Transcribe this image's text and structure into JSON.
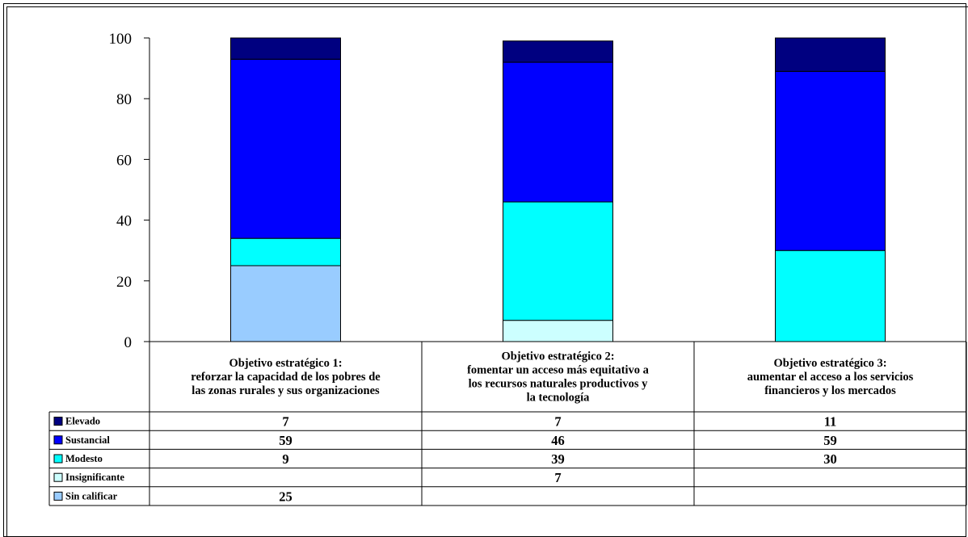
{
  "chart_data": {
    "type": "bar",
    "stacked": true,
    "ylim": [
      0,
      100
    ],
    "yticks": [
      0,
      20,
      40,
      60,
      80,
      100
    ],
    "grid": false,
    "legend_placement": "data table rows below chart",
    "categories": [
      [
        "Objetivo estratégico 1:",
        "reforzar la capacidad de los pobres de",
        "las zonas rurales y sus organizaciones"
      ],
      [
        "Objetivo estratégico 2:",
        "fomentar un acceso más equitativo a",
        "los recursos naturales productivos y",
        "la tecnología"
      ],
      [
        "Objetivo estratégico 3:",
        "aumentar el acceso a los servicios",
        "financieros y los mercados"
      ]
    ],
    "series": [
      {
        "name": "Sin calificar",
        "color": "#99ccff",
        "values": [
          25,
          null,
          null
        ]
      },
      {
        "name": "Insignificante",
        "color": "#ccffff",
        "values": [
          null,
          7,
          null
        ]
      },
      {
        "name": "Modesto",
        "color": "#00ffff",
        "values": [
          9,
          39,
          30
        ]
      },
      {
        "name": "Sustancial",
        "color": "#0000ff",
        "values": [
          59,
          46,
          59
        ]
      },
      {
        "name": "Elevado",
        "color": "#000080",
        "values": [
          7,
          7,
          11
        ]
      }
    ],
    "table_row_order": [
      "Elevado",
      "Sustancial",
      "Modesto",
      "Insignificante",
      "Sin calificar"
    ]
  }
}
